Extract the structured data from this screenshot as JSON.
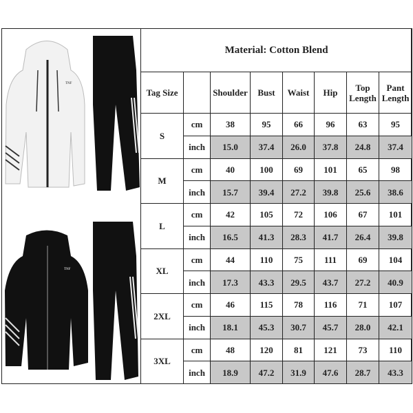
{
  "title": "Material: Cotton Blend",
  "headers": {
    "tag_size": "Tag Size",
    "unit": "",
    "cols": [
      "Shoulder",
      "Bust",
      "Waist",
      "Hip",
      "Top Length",
      "Pant Length"
    ]
  },
  "units": [
    "cm",
    "inch"
  ],
  "sizes": [
    {
      "size": "S",
      "cm": [
        "38",
        "95",
        "66",
        "96",
        "63",
        "95"
      ],
      "inch": [
        "15.0",
        "37.4",
        "26.0",
        "37.8",
        "24.8",
        "37.4"
      ]
    },
    {
      "size": "M",
      "cm": [
        "40",
        "100",
        "69",
        "101",
        "65",
        "98"
      ],
      "inch": [
        "15.7",
        "39.4",
        "27.2",
        "39.8",
        "25.6",
        "38.6"
      ]
    },
    {
      "size": "L",
      "cm": [
        "42",
        "105",
        "72",
        "106",
        "67",
        "101"
      ],
      "inch": [
        "16.5",
        "41.3",
        "28.3",
        "41.7",
        "26.4",
        "39.8"
      ]
    },
    {
      "size": "XL",
      "cm": [
        "44",
        "110",
        "75",
        "111",
        "69",
        "104"
      ],
      "inch": [
        "17.3",
        "43.3",
        "29.5",
        "43.7",
        "27.2",
        "40.9"
      ]
    },
    {
      "size": "2XL",
      "cm": [
        "46",
        "115",
        "78",
        "116",
        "71",
        "107"
      ],
      "inch": [
        "18.1",
        "45.3",
        "30.7",
        "45.7",
        "28.0",
        "42.1"
      ]
    },
    {
      "size": "3XL",
      "cm": [
        "48",
        "120",
        "81",
        "121",
        "73",
        "110"
      ],
      "inch": [
        "18.9",
        "47.2",
        "31.9",
        "47.6",
        "28.7",
        "43.3"
      ]
    }
  ],
  "colors": {
    "inch_row_fill": "#c8c8c8",
    "border": "#222222"
  },
  "products": [
    {
      "name": "white-tracksuit",
      "logo": "THE NORTH FACE"
    },
    {
      "name": "black-tracksuit",
      "logo": "THE NORTH FACE"
    }
  ]
}
